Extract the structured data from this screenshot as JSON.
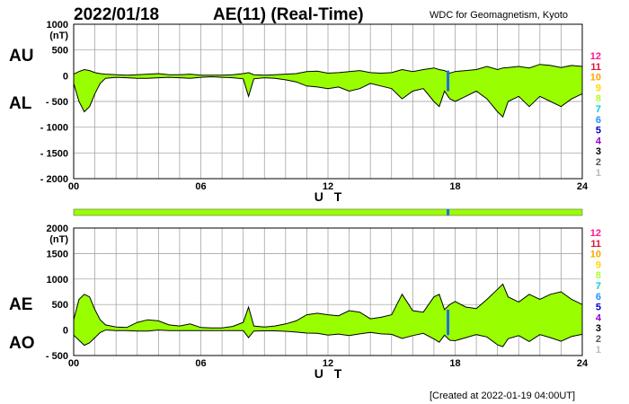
{
  "header": {
    "date": "2022/01/18",
    "title": "AE(11) (Real-Time)",
    "source": "WDC for Geomagnetism, Kyoto"
  },
  "footer": {
    "created": "[Created at 2022-01-19 04:00UT]"
  },
  "level_legend": {
    "labels": [
      "12",
      "11",
      "10",
      "9",
      "8",
      "7",
      "6",
      "5",
      "4",
      "3",
      "2",
      "1"
    ],
    "colors": [
      "#ff1493",
      "#dc143c",
      "#ffa500",
      "#ffd700",
      "#adff2f",
      "#00ced1",
      "#1e90ff",
      "#0000cd",
      "#9400d3",
      "#000000",
      "#555555",
      "#bbbbbb"
    ]
  },
  "colors": {
    "fill": "#99ff00",
    "line": "#000000",
    "grid": "#999999",
    "gap_marker": "#1e6fd9"
  },
  "chart_data": [
    {
      "type": "area",
      "panel": "AU/AL",
      "labels_left": [
        "AU",
        "AL"
      ],
      "ylabel": "(nT)",
      "ylim": [
        -2000,
        1000
      ],
      "yticks": [
        1000,
        500,
        0,
        -500,
        -1000,
        -1500,
        -2000
      ],
      "ytick_labels": [
        "1000",
        "500",
        "0",
        "- 500",
        "- 1000",
        "- 1500",
        "- 2000"
      ],
      "xlim": [
        0,
        24
      ],
      "xticks": [
        0,
        6,
        12,
        18,
        24
      ],
      "xtick_labels": [
        "00",
        "06",
        "12",
        "18",
        "24"
      ],
      "xlabel": "U T",
      "grid": true,
      "x": [
        0,
        0.25,
        0.5,
        0.75,
        1,
        1.25,
        1.5,
        2,
        2.5,
        3,
        3.5,
        4,
        4.5,
        5,
        5.5,
        6,
        6.5,
        7,
        7.5,
        8,
        8.25,
        8.5,
        9,
        9.5,
        10,
        10.5,
        11,
        11.5,
        12,
        12.5,
        13,
        13.5,
        14,
        14.5,
        15,
        15.5,
        16,
        16.5,
        17,
        17.25,
        17.5,
        17.75,
        18,
        18.5,
        19,
        19.5,
        20,
        20.25,
        20.5,
        21,
        21.5,
        22,
        22.5,
        23,
        23.5,
        24
      ],
      "series": [
        {
          "name": "AU",
          "values": [
            30,
            80,
            120,
            100,
            60,
            40,
            30,
            20,
            10,
            20,
            30,
            40,
            20,
            20,
            30,
            10,
            10,
            10,
            20,
            40,
            60,
            20,
            10,
            20,
            30,
            40,
            80,
            90,
            50,
            60,
            80,
            100,
            60,
            50,
            60,
            120,
            80,
            120,
            150,
            120,
            100,
            50,
            80,
            100,
            120,
            180,
            120,
            150,
            160,
            180,
            150,
            220,
            200,
            160,
            200,
            180
          ]
        },
        {
          "name": "AL",
          "values": [
            -150,
            -500,
            -700,
            -600,
            -350,
            -150,
            -50,
            -30,
            -40,
            -50,
            -50,
            -40,
            -30,
            -40,
            -50,
            -30,
            -20,
            -30,
            -40,
            -60,
            -400,
            -60,
            -40,
            -50,
            -80,
            -120,
            -200,
            -220,
            -250,
            -220,
            -300,
            -250,
            -150,
            -200,
            -250,
            -450,
            -300,
            -250,
            -500,
            -600,
            -300,
            -450,
            -500,
            -400,
            -300,
            -450,
            -700,
            -800,
            -500,
            -400,
            -600,
            -400,
            -500,
            -600,
            -450,
            -350
          ]
        }
      ]
    },
    {
      "type": "area",
      "panel": "AE/AO",
      "labels_left": [
        "AE",
        "AO"
      ],
      "ylabel": "(nT)",
      "ylim": [
        -500,
        2000
      ],
      "yticks": [
        2000,
        1500,
        1000,
        500,
        0,
        -500
      ],
      "ytick_labels": [
        "2000",
        "1500",
        "1000",
        "500",
        "0",
        "- 500"
      ],
      "xlim": [
        0,
        24
      ],
      "xticks": [
        0,
        6,
        12,
        18,
        24
      ],
      "xtick_labels": [
        "00",
        "06",
        "12",
        "18",
        "24"
      ],
      "xlabel": "U T",
      "grid": true,
      "x": [
        0,
        0.25,
        0.5,
        0.75,
        1,
        1.25,
        1.5,
        2,
        2.5,
        3,
        3.5,
        4,
        4.5,
        5,
        5.5,
        6,
        6.5,
        7,
        7.5,
        8,
        8.25,
        8.5,
        9,
        9.5,
        10,
        10.5,
        11,
        11.5,
        12,
        12.5,
        13,
        13.5,
        14,
        14.5,
        15,
        15.5,
        16,
        16.5,
        17,
        17.25,
        17.5,
        17.75,
        18,
        18.5,
        19,
        19.5,
        20,
        20.25,
        20.5,
        21,
        21.5,
        22,
        22.5,
        23,
        23.5,
        24
      ],
      "series": [
        {
          "name": "AE",
          "values": [
            200,
            600,
            700,
            650,
            400,
            200,
            100,
            60,
            50,
            150,
            200,
            180,
            100,
            80,
            120,
            50,
            40,
            40,
            70,
            150,
            450,
            80,
            60,
            80,
            120,
            180,
            300,
            330,
            300,
            280,
            380,
            350,
            220,
            250,
            300,
            700,
            380,
            350,
            650,
            700,
            400,
            500,
            560,
            450,
            420,
            600,
            800,
            900,
            650,
            550,
            700,
            600,
            700,
            750,
            600,
            500
          ]
        },
        {
          "name": "AO",
          "values": [
            -100,
            -200,
            -300,
            -250,
            -150,
            -50,
            0,
            -10,
            -10,
            -20,
            -20,
            0,
            -10,
            -10,
            -10,
            -10,
            -10,
            -10,
            -10,
            -10,
            -150,
            -20,
            -15,
            -15,
            -25,
            -40,
            -60,
            -65,
            -100,
            -80,
            -110,
            -75,
            -45,
            -75,
            -85,
            -165,
            -110,
            -65,
            -175,
            -240,
            -100,
            -200,
            -210,
            -150,
            -90,
            -135,
            -290,
            -325,
            -170,
            -110,
            -225,
            -90,
            -150,
            -220,
            -125,
            -85
          ]
        }
      ]
    },
    {
      "type": "bar",
      "panel": "data-quality strip",
      "xlim": [
        0,
        24
      ],
      "marker_time": 17.6,
      "marker_width": 0.12
    }
  ]
}
